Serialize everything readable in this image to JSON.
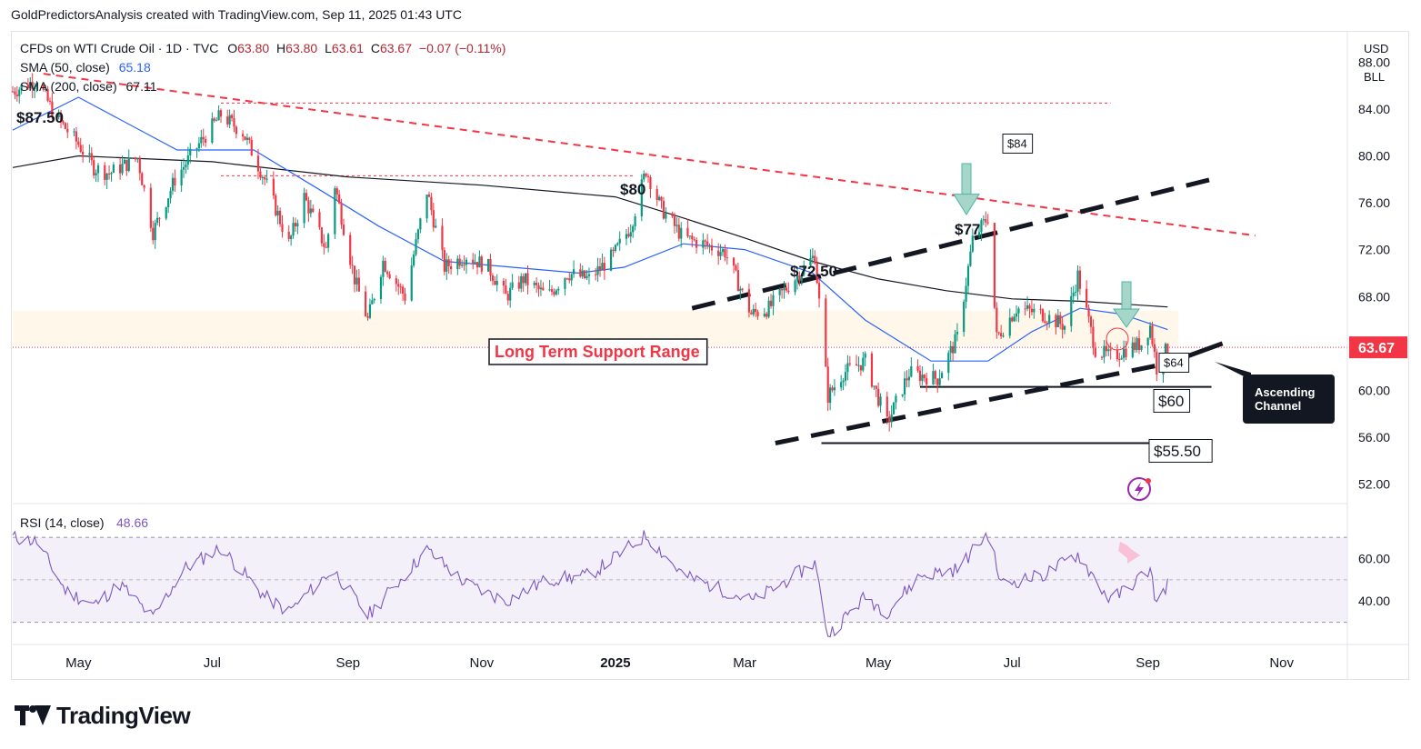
{
  "header": {
    "attribution": "GoldPredictorsAnalysis created with TradingView.com, Sep 11, 2025 01:43 UTC"
  },
  "legend": {
    "symbol": "CFDs on WTI Crude Oil · 1D · TVC",
    "o_label": "O",
    "o_value": "63.80",
    "h_label": "H",
    "h_value": "63.80",
    "l_label": "L",
    "l_value": "63.61",
    "c_label": "C",
    "c_value": "63.67",
    "change": "−0.07 (−0.11%)",
    "sma50_label": "SMA (50, close)",
    "sma50_value": "65.18",
    "sma200_label": "SMA (200, close)",
    "sma200_value": "67.11"
  },
  "currency": "USD",
  "unit": "BLL",
  "rsi_legend": {
    "label": "RSI (14, close)",
    "value": "48.66"
  },
  "brand": "TradingView",
  "colors": {
    "up": "#089981",
    "down": "#f23645",
    "sma50": "#2962ff",
    "sma200": "#131722",
    "rsi": "#7e57c2",
    "resistance": "#f23645",
    "price_tag": "#f23645"
  },
  "chart_data": {
    "type": "candlestick",
    "x_start": "2024-04-01",
    "x_end": "2025-12-01",
    "x_ticks": [
      {
        "label": "May",
        "date": "2024-05-01"
      },
      {
        "label": "Jul",
        "date": "2024-07-01"
      },
      {
        "label": "Sep",
        "date": "2024-09-01"
      },
      {
        "label": "Nov",
        "date": "2024-11-01"
      },
      {
        "label": "2025",
        "date": "2025-01-01"
      },
      {
        "label": "Mar",
        "date": "2025-03-01"
      },
      {
        "label": "May",
        "date": "2025-05-01"
      },
      {
        "label": "Jul",
        "date": "2025-07-01"
      },
      {
        "label": "Sep",
        "date": "2025-09-01"
      },
      {
        "label": "Nov",
        "date": "2025-11-01"
      }
    ],
    "y_ticks": [
      "88.00",
      "84.00",
      "80.00",
      "76.00",
      "72.00",
      "68.00",
      "64.00",
      "60.00",
      "56.00",
      "52.00"
    ],
    "ylim": [
      50.5,
      90.5
    ],
    "last_price": "63.67",
    "price_path": [
      [
        "2024-04-01",
        85.5
      ],
      [
        "2024-04-12",
        86.5
      ],
      [
        "2024-04-20",
        83.5
      ],
      [
        "2024-05-01",
        81.0
      ],
      [
        "2024-05-08",
        79.0
      ],
      [
        "2024-05-15",
        78.5
      ],
      [
        "2024-05-28",
        79.8
      ],
      [
        "2024-06-04",
        73.5
      ],
      [
        "2024-06-14",
        78.0
      ],
      [
        "2024-06-25",
        81.0
      ],
      [
        "2024-07-05",
        83.5
      ],
      [
        "2024-07-15",
        82.0
      ],
      [
        "2024-07-25",
        78.0
      ],
      [
        "2024-08-05",
        72.5
      ],
      [
        "2024-08-12",
        76.5
      ],
      [
        "2024-08-22",
        72.0
      ],
      [
        "2024-08-26",
        77.5
      ],
      [
        "2024-09-04",
        69.5
      ],
      [
        "2024-09-10",
        66.0
      ],
      [
        "2024-09-17",
        71.0
      ],
      [
        "2024-09-27",
        68.0
      ],
      [
        "2024-10-07",
        77.0
      ],
      [
        "2024-10-15",
        70.5
      ],
      [
        "2024-10-25",
        71.5
      ],
      [
        "2024-11-04",
        70.5
      ],
      [
        "2024-11-12",
        68.0
      ],
      [
        "2024-11-20",
        69.5
      ],
      [
        "2024-12-01",
        68.0
      ],
      [
        "2024-12-10",
        70.0
      ],
      [
        "2024-12-20",
        69.5
      ],
      [
        "2024-12-31",
        71.5
      ],
      [
        "2025-01-08",
        74.0
      ],
      [
        "2025-01-15",
        78.8
      ],
      [
        "2025-01-22",
        75.5
      ],
      [
        "2025-02-01",
        73.0
      ],
      [
        "2025-02-10",
        72.5
      ],
      [
        "2025-02-20",
        71.8
      ],
      [
        "2025-03-04",
        66.5
      ],
      [
        "2025-03-12",
        67.0
      ],
      [
        "2025-03-25",
        69.8
      ],
      [
        "2025-04-02",
        71.5
      ],
      [
        "2025-04-08",
        59.5
      ],
      [
        "2025-04-15",
        61.5
      ],
      [
        "2025-04-25",
        62.5
      ],
      [
        "2025-05-05",
        57.2
      ],
      [
        "2025-05-15",
        61.5
      ],
      [
        "2025-05-28",
        61.0
      ],
      [
        "2025-06-06",
        64.5
      ],
      [
        "2025-06-13",
        72.8
      ],
      [
        "2025-06-20",
        74.8
      ],
      [
        "2025-06-24",
        64.5
      ],
      [
        "2025-07-03",
        67.0
      ],
      [
        "2025-07-15",
        66.5
      ],
      [
        "2025-07-25",
        65.5
      ],
      [
        "2025-07-31",
        69.8
      ],
      [
        "2025-08-08",
        63.5
      ],
      [
        "2025-08-15",
        62.8
      ],
      [
        "2025-08-22",
        63.5
      ],
      [
        "2025-08-29",
        64.0
      ],
      [
        "2025-09-02",
        65.5
      ],
      [
        "2025-09-05",
        61.9
      ],
      [
        "2025-09-10",
        63.67
      ]
    ],
    "series": [
      {
        "name": "SMA (50, close)",
        "points": [
          [
            "2024-04-01",
            82.2
          ],
          [
            "2024-05-01",
            85.0
          ],
          [
            "2024-06-15",
            80.5
          ],
          [
            "2024-07-20",
            80.5
          ],
          [
            "2024-08-20",
            77.0
          ],
          [
            "2024-09-15",
            74.0
          ],
          [
            "2024-10-15",
            71.0
          ],
          [
            "2024-11-15",
            70.5
          ],
          [
            "2024-12-15",
            70.0
          ],
          [
            "2025-01-05",
            70.5
          ],
          [
            "2025-02-01",
            72.5
          ],
          [
            "2025-03-01",
            72.0
          ],
          [
            "2025-04-01",
            70.0
          ],
          [
            "2025-04-25",
            66.0
          ],
          [
            "2025-05-25",
            62.5
          ],
          [
            "2025-06-20",
            62.5
          ],
          [
            "2025-07-10",
            65.0
          ],
          [
            "2025-08-01",
            67.0
          ],
          [
            "2025-08-20",
            66.5
          ],
          [
            "2025-09-10",
            65.18
          ]
        ]
      },
      {
        "name": "SMA (200, close)",
        "points": [
          [
            "2024-04-01",
            79.0
          ],
          [
            "2024-05-01",
            80.0
          ],
          [
            "2024-07-01",
            79.5
          ],
          [
            "2024-09-01",
            78.2
          ],
          [
            "2024-11-01",
            77.5
          ],
          [
            "2025-01-01",
            76.5
          ],
          [
            "2025-02-01",
            74.7
          ],
          [
            "2025-03-01",
            73.0
          ],
          [
            "2025-04-01",
            71.0
          ],
          [
            "2025-05-01",
            69.5
          ],
          [
            "2025-06-01",
            68.5
          ],
          [
            "2025-07-01",
            67.8
          ],
          [
            "2025-08-01",
            67.6
          ],
          [
            "2025-09-10",
            67.11
          ]
        ]
      }
    ],
    "rsi": {
      "name": "RSI (14, close)",
      "y_ticks": [
        "60.00",
        "40.00"
      ],
      "upper_band": 70,
      "mid": 50,
      "lower_band": 30,
      "points": [
        [
          "2024-04-01",
          70.0
        ],
        [
          "2024-04-12",
          68.0
        ],
        [
          "2024-04-25",
          45.0
        ],
        [
          "2024-05-08",
          38.0
        ],
        [
          "2024-05-20",
          48.0
        ],
        [
          "2024-06-04",
          32.0
        ],
        [
          "2024-06-18",
          55.0
        ],
        [
          "2024-07-05",
          65.0
        ],
        [
          "2024-07-25",
          42.0
        ],
        [
          "2024-08-05",
          35.0
        ],
        [
          "2024-08-25",
          55.0
        ],
        [
          "2024-09-10",
          33.0
        ],
        [
          "2024-10-07",
          64.0
        ],
        [
          "2024-10-25",
          48.0
        ],
        [
          "2024-11-12",
          40.0
        ],
        [
          "2024-12-01",
          50.0
        ],
        [
          "2024-12-20",
          52.0
        ],
        [
          "2025-01-15",
          71.0
        ],
        [
          "2025-02-01",
          52.0
        ],
        [
          "2025-03-05",
          40.0
        ],
        [
          "2025-04-02",
          58.0
        ],
        [
          "2025-04-08",
          24.0
        ],
        [
          "2025-04-25",
          42.0
        ],
        [
          "2025-05-05",
          35.0
        ],
        [
          "2025-05-20",
          52.0
        ],
        [
          "2025-06-06",
          55.0
        ],
        [
          "2025-06-20",
          72.0
        ],
        [
          "2025-06-26",
          48.0
        ],
        [
          "2025-07-15",
          52.0
        ],
        [
          "2025-07-31",
          62.0
        ],
        [
          "2025-08-15",
          40.0
        ],
        [
          "2025-09-02",
          55.0
        ],
        [
          "2025-09-05",
          38.0
        ],
        [
          "2025-09-10",
          48.66
        ]
      ]
    },
    "annotations": {
      "high_label": "$87.50",
      "label_80": "$80",
      "label_77": "$77",
      "label_7250": "$72.50",
      "box_84": "$84",
      "box_64": "$64",
      "box_60": "$60",
      "box_5550": "$55.50",
      "support_range": "Long Term Support Range",
      "callout": "Ascending Channel",
      "support_range_low": 63.8,
      "support_range_high": 66.8,
      "resistance_line": [
        [
          "2024-04-15",
          87.0
        ],
        [
          "2025-10-20",
          73.2
        ]
      ],
      "level_84": [
        [
          "2024-07-05",
          84.5
        ],
        [
          "2025-08-15",
          84.5
        ]
      ],
      "level_78": [
        [
          "2024-07-05",
          78.3
        ],
        [
          "2025-01-10",
          78.3
        ]
      ],
      "level_60": [
        [
          "2025-05-20",
          60.3
        ],
        [
          "2025-09-30",
          60.3
        ]
      ],
      "level_5550": [
        [
          "2025-04-05",
          55.5
        ],
        [
          "2025-09-30",
          55.5
        ]
      ],
      "channel_lower": [
        [
          "2025-03-15",
          55.5
        ],
        [
          "2025-09-10",
          62.3
        ]
      ],
      "channel_upper": [
        [
          "2025-02-05",
          67.0
        ],
        [
          "2025-09-30",
          78.0
        ]
      ],
      "channel_lower_ext": [
        [
          "2025-09-10",
          62.3
        ],
        [
          "2025-10-05",
          64.0
        ]
      ]
    }
  }
}
